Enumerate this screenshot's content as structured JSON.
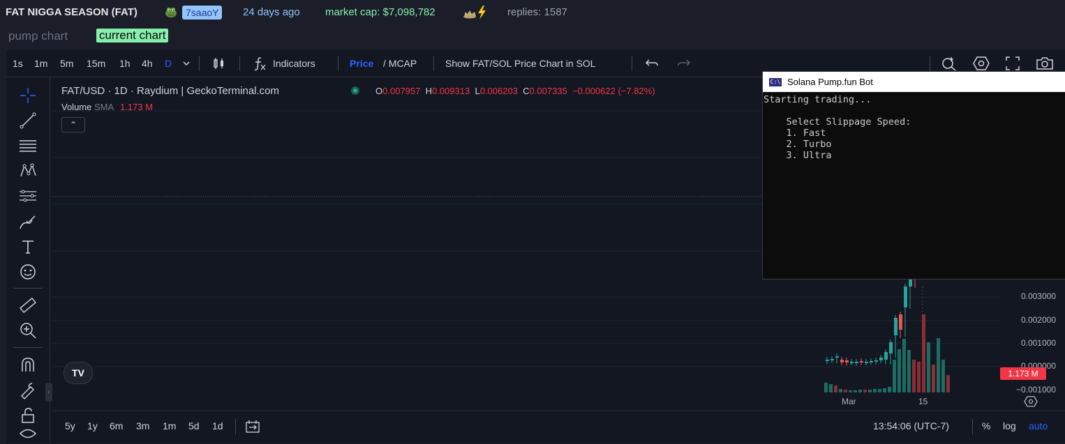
{
  "header": {
    "title": "FAT NIGGA SEASON (FAT)",
    "creator_badge": "7saaoY",
    "age": "24 days ago",
    "market_cap": "market cap: $7,098,782",
    "replies": "replies: 1587"
  },
  "tabs": {
    "pump": "pump chart",
    "current": "current chart"
  },
  "toolbar": {
    "intervals": [
      "1s",
      "1m",
      "5m",
      "15m",
      "1h",
      "4h",
      "D"
    ],
    "active_interval": "D",
    "indicators": "Indicators",
    "price": "Price",
    "slash_mcap": "/ MCAP",
    "show_sol": "Show FAT/SOL Price Chart in SOL"
  },
  "legend": {
    "symbol": "FAT/USD · 1D · Raydium | GeckoTerminal.com",
    "o_label": "O",
    "o": "0.007957",
    "h_label": "H",
    "h": "0.009313",
    "l_label": "L",
    "l": "0.006203",
    "c_label": "C",
    "c": "0.007335",
    "change": "−0.000622 (−7.82%)",
    "volume_label": "Volume",
    "sma": "SMA",
    "volume_value": "1.173 M"
  },
  "price_axis": {
    "ticks": [
      "0.003000",
      "0.002000",
      "0.001000",
      "0.000000",
      "−0.001000"
    ],
    "current_volume_tag": "1.173 M"
  },
  "time_axis": {
    "ticks": [
      "Mar",
      "15"
    ]
  },
  "bottom": {
    "ranges": [
      "5y",
      "1y",
      "6m",
      "3m",
      "1m",
      "5d",
      "1d"
    ],
    "clock": "13:54:06 (UTC-7)",
    "percent": "%",
    "log": "log",
    "auto": "auto"
  },
  "console": {
    "title": "Solana Pump.fun Bot",
    "icon_text": "C:\\",
    "lines": [
      "Starting trading...",
      "",
      "    Select Slippage Speed:",
      "    1. Fast",
      "    2. Turbo",
      "    3. Ultra"
    ]
  },
  "colors": {
    "up": "#26a69a",
    "down": "#ef5350",
    "accent": "#2962ff",
    "background": "#131722"
  },
  "icons": [
    "crosshair-icon",
    "trendline-icon",
    "fib-icon",
    "pattern-icon",
    "projection-icon",
    "brush-icon",
    "text-icon",
    "emoji-icon",
    "ruler-icon",
    "zoom-icon",
    "magnet-icon",
    "lock-drawing-icon",
    "unlock-icon",
    "eye-icon"
  ]
}
